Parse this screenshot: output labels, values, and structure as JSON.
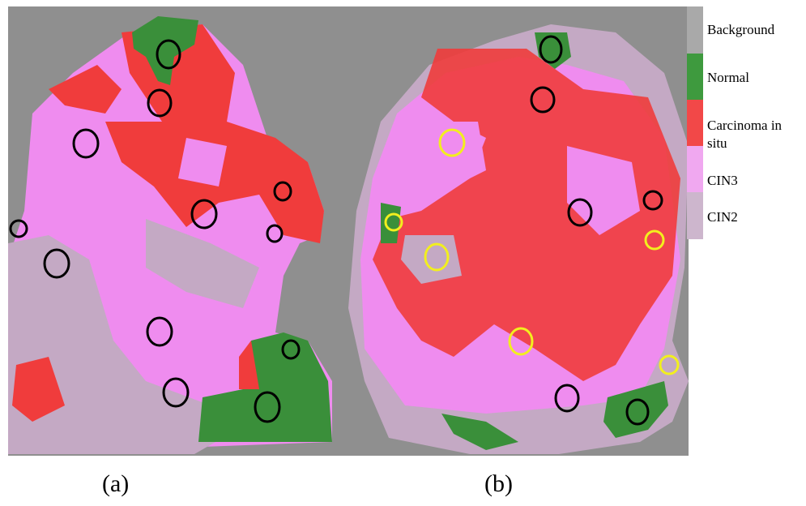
{
  "legend": [
    "Background",
    "Normal",
    "Carcinoma in situ",
    "CIN3",
    "CIN2"
  ],
  "captions": [
    "(a)",
    "(b)"
  ]
}
